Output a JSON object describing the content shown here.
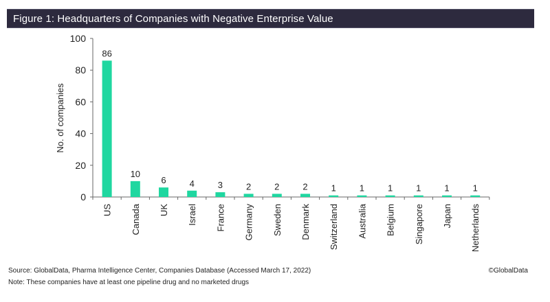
{
  "header": {
    "title": "Figure 1: Headquarters of Companies with Negative Enterprise Value",
    "background_color": "#2d2a3e",
    "text_color": "#ffffff"
  },
  "chart_data": {
    "type": "bar",
    "title": "Figure 1: Headquarters of Companies with Negative Enterprise Value",
    "xlabel": "",
    "ylabel": "No. of companies",
    "categories": [
      "US",
      "Canada",
      "UK",
      "Israel",
      "France",
      "Germany",
      "Sweden",
      "Denmark",
      "Switzerland",
      "Australia",
      "Belgium",
      "Singapore",
      "Japan",
      "Netherlands"
    ],
    "values": [
      86,
      10,
      6,
      4,
      3,
      2,
      2,
      2,
      1,
      1,
      1,
      1,
      1,
      1
    ],
    "data_labels": [
      "86",
      "10",
      "6",
      "4",
      "3",
      "2",
      "2",
      "2",
      "1",
      "1",
      "1",
      "1",
      "1",
      "1"
    ],
    "ylim": [
      0,
      100
    ],
    "yticks": [
      0,
      20,
      40,
      60,
      80,
      100
    ],
    "ytick_labels": [
      "0",
      "20",
      "40",
      "60",
      "80",
      "100"
    ],
    "grid": false,
    "legend": "none",
    "bar_color": "#1fd7a0"
  },
  "footer": {
    "source": "Source: GlobalData, Pharma Intelligence Center, Companies Database (Accessed March 17, 2022)",
    "note": "Note: These companies have at least one pipeline drug and no marketed drugs",
    "copyright": "©GlobalData"
  }
}
